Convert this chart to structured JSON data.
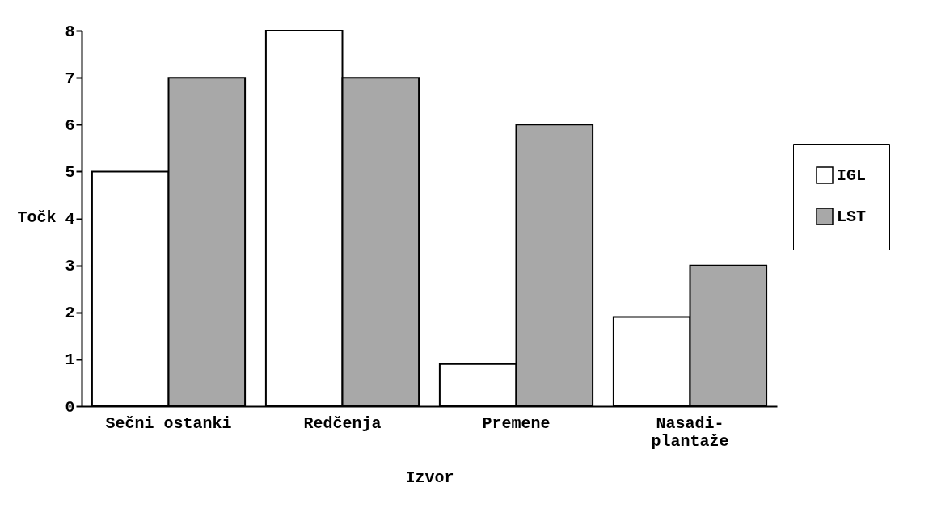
{
  "chart_data": {
    "type": "bar",
    "xlabel": "Izvor",
    "ylabel": "Točk",
    "categories": [
      "Sečni ostanki",
      "Redčenja",
      "Premene",
      "Nasadi-\nplantaže"
    ],
    "series": [
      {
        "name": "IGL",
        "color": "#ffffff",
        "values": [
          5,
          8,
          0.9,
          1.9
        ]
      },
      {
        "name": "LST",
        "color": "#a8a8a8",
        "values": [
          7,
          7,
          6,
          3
        ]
      }
    ],
    "ylim": [
      0,
      8
    ],
    "yticks": [
      0,
      1,
      2,
      3,
      4,
      5,
      6,
      7,
      8
    ],
    "legend": "right",
    "grid": false
  }
}
